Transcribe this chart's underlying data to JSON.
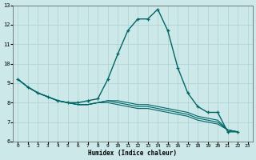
{
  "xlabel": "Humidex (Indice chaleur)",
  "background_color": "#cce8e8",
  "grid_color": "#aad0d0",
  "line_color": "#006666",
  "xlim_min": -0.5,
  "xlim_max": 23.5,
  "ylim_min": 6,
  "ylim_max": 13,
  "x_ticks": [
    0,
    1,
    2,
    3,
    4,
    5,
    6,
    7,
    8,
    9,
    10,
    11,
    12,
    13,
    14,
    15,
    16,
    17,
    18,
    19,
    20,
    21,
    22,
    23
  ],
  "y_ticks": [
    6,
    7,
    8,
    9,
    10,
    11,
    12,
    13
  ],
  "series_main": [
    9.2,
    8.8,
    8.5,
    8.3,
    8.1,
    8.0,
    8.0,
    8.1,
    8.2,
    9.2,
    10.5,
    11.7,
    12.3,
    12.3,
    12.8,
    11.7,
    9.8,
    8.5,
    7.8,
    7.5,
    7.5,
    6.5,
    6.5
  ],
  "series_flat1": [
    9.2,
    8.8,
    8.5,
    8.3,
    8.1,
    8.0,
    7.9,
    7.9,
    8.0,
    8.1,
    8.1,
    8.0,
    7.9,
    7.9,
    7.8,
    7.7,
    7.6,
    7.5,
    7.3,
    7.2,
    7.1,
    6.6,
    6.5
  ],
  "series_flat2": [
    9.2,
    8.8,
    8.5,
    8.3,
    8.1,
    8.0,
    7.9,
    7.9,
    8.0,
    8.1,
    8.0,
    7.9,
    7.8,
    7.8,
    7.7,
    7.6,
    7.5,
    7.4,
    7.2,
    7.1,
    7.0,
    6.6,
    6.5
  ],
  "series_flat3": [
    9.2,
    8.8,
    8.5,
    8.3,
    8.1,
    8.0,
    7.9,
    7.9,
    8.0,
    8.0,
    7.9,
    7.8,
    7.7,
    7.7,
    7.6,
    7.5,
    7.4,
    7.3,
    7.1,
    7.0,
    6.9,
    6.6,
    6.5
  ]
}
